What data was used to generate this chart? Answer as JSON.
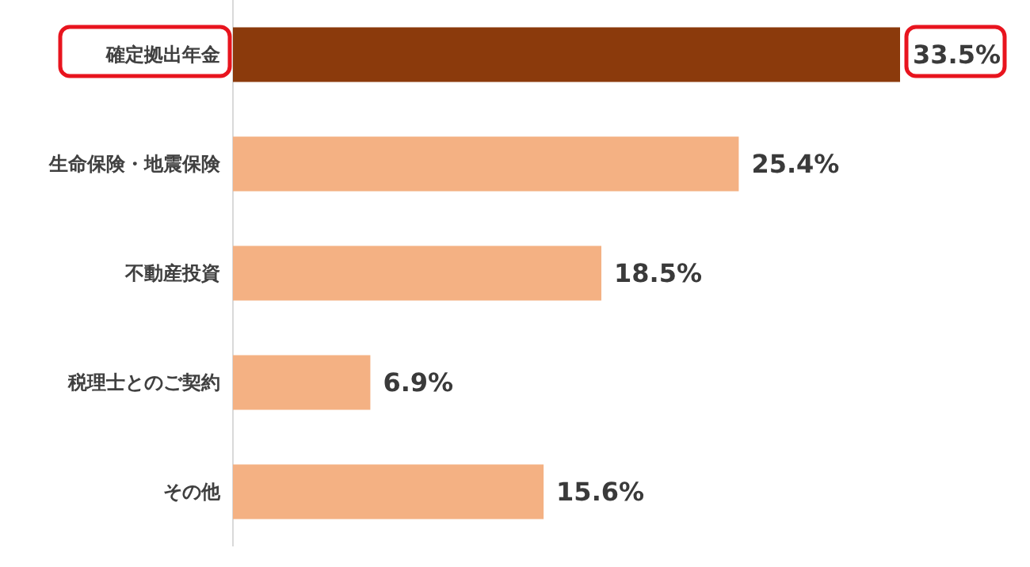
{
  "chart_data": {
    "type": "bar",
    "orientation": "horizontal",
    "categories": [
      "確定拠出年金",
      "生命保険・地震保険",
      "不動産投資",
      "税理士とのご契約",
      "その他"
    ],
    "values": [
      33.5,
      25.4,
      18.5,
      6.9,
      15.6
    ],
    "colors": [
      "#8b3a0c",
      "#f4b183",
      "#f4b183",
      "#f4b183",
      "#f4b183"
    ],
    "value_labels": [
      "33.5%",
      "25.4%",
      "18.5%",
      "6.9%",
      "15.6%"
    ]
  }
}
